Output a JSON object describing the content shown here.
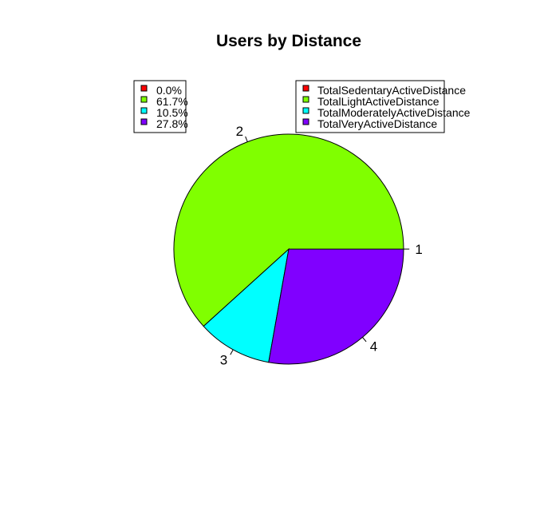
{
  "chart_data": {
    "type": "pie",
    "title": "Users by Distance",
    "slice_labels": [
      "1",
      "2",
      "3",
      "4"
    ],
    "categories": [
      "TotalSedentaryActiveDistance",
      "TotalLightActiveDistance",
      "TotalModeratelyActiveDistance",
      "TotalVeryActiveDistance"
    ],
    "percent_labels": [
      "0.0%",
      "61.7%",
      "10.5%",
      "27.8%"
    ],
    "values": [
      0.0,
      61.7,
      10.5,
      27.8
    ],
    "colors": [
      "#ff0000",
      "#80ff00",
      "#00ffff",
      "#8000ff"
    ],
    "start_angle_deg": 0,
    "direction": "counterclockwise",
    "legends": [
      "top-left",
      "top-right"
    ]
  }
}
